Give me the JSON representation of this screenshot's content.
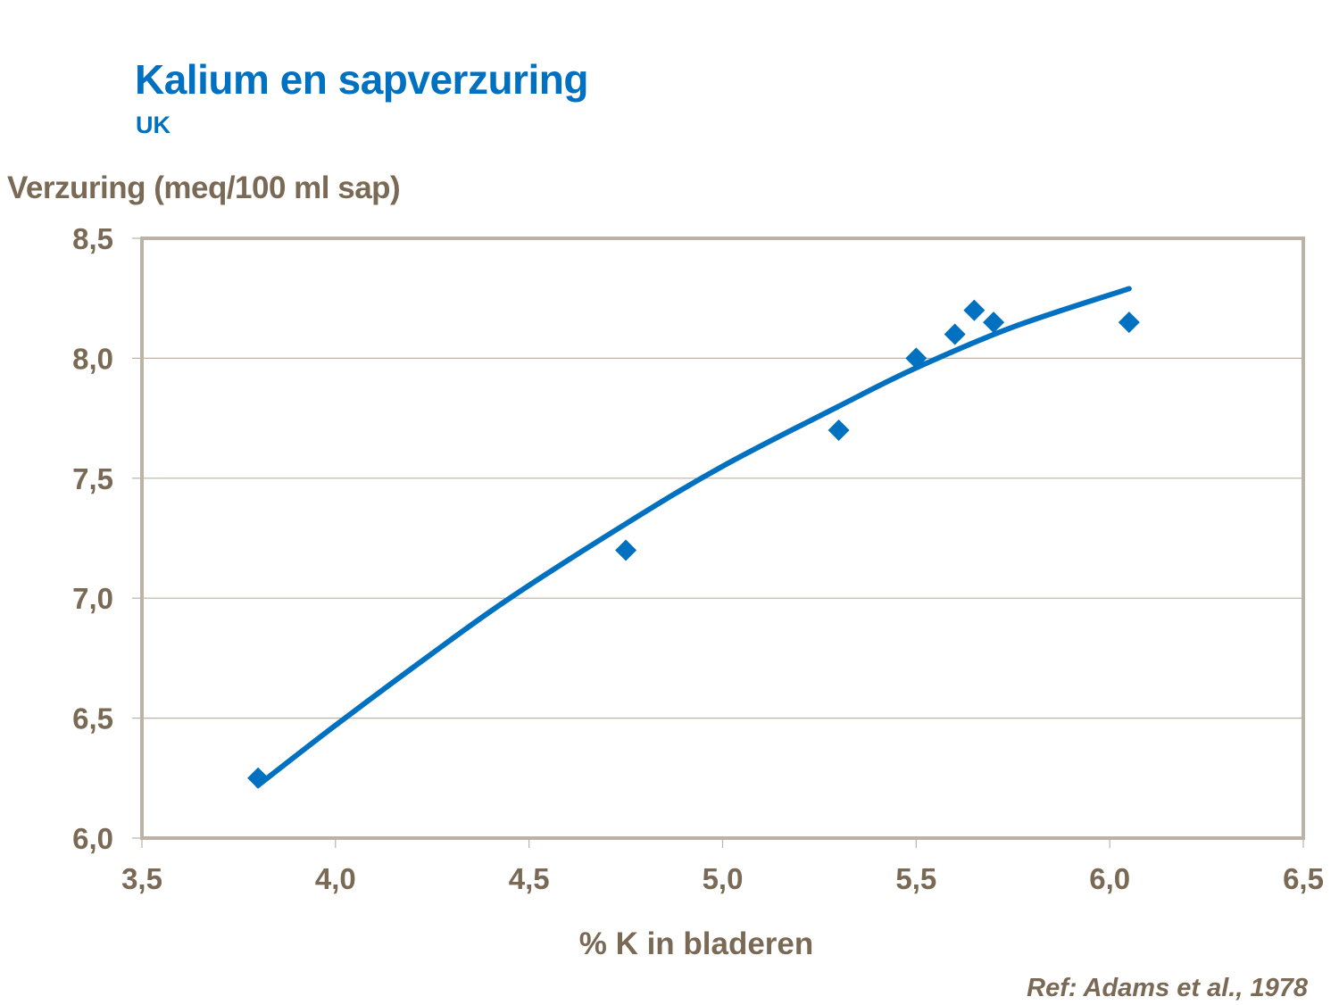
{
  "header": {
    "title": "Kalium en sapverzuring",
    "subtitle": "UK"
  },
  "footer": {
    "reference": "Ref: Adams et al., 1978"
  },
  "colors": {
    "accent": "#0070c0",
    "axis_text": "#7a6a55",
    "frame": "#bcb2a6",
    "grid": "#bcb2a6"
  },
  "chart_data": {
    "type": "scatter",
    "title": "Kalium en sapverzuring",
    "subtitle": "UK",
    "xlabel": "% K in bladeren",
    "ylabel": "Verzuring (meq/100 ml sap)",
    "xlim": [
      3.5,
      6.5
    ],
    "ylim": [
      6.0,
      8.5
    ],
    "x_ticks": [
      3.5,
      4.0,
      4.5,
      5.0,
      5.5,
      6.0,
      6.5
    ],
    "x_tick_labels": [
      "3,5",
      "4,0",
      "4,5",
      "5,0",
      "5,5",
      "6,0",
      "6,5"
    ],
    "y_ticks": [
      6.0,
      6.5,
      7.0,
      7.5,
      8.0,
      8.5
    ],
    "y_tick_labels": [
      "6,0",
      "6,5",
      "7,0",
      "7,5",
      "8,0",
      "8,5"
    ],
    "grid": "horizontal",
    "legend": "none",
    "series": [
      {
        "name": "Observations",
        "marker": "diamond",
        "x": [
          3.8,
          4.75,
          5.3,
          5.5,
          5.6,
          5.65,
          5.7,
          6.05
        ],
        "y": [
          6.25,
          7.2,
          7.7,
          8.0,
          8.1,
          8.2,
          8.15,
          8.15
        ]
      },
      {
        "name": "Trendline (polynomial)",
        "type": "line",
        "x": [
          3.8,
          4.0,
          4.25,
          4.45,
          4.75,
          5.0,
          5.3,
          5.5,
          5.75,
          6.05
        ],
        "y": [
          6.22,
          6.47,
          6.77,
          7.0,
          7.31,
          7.55,
          7.8,
          7.96,
          8.13,
          8.29
        ]
      }
    ],
    "annotations": [
      "Ref: Adams et al., 1978"
    ]
  }
}
